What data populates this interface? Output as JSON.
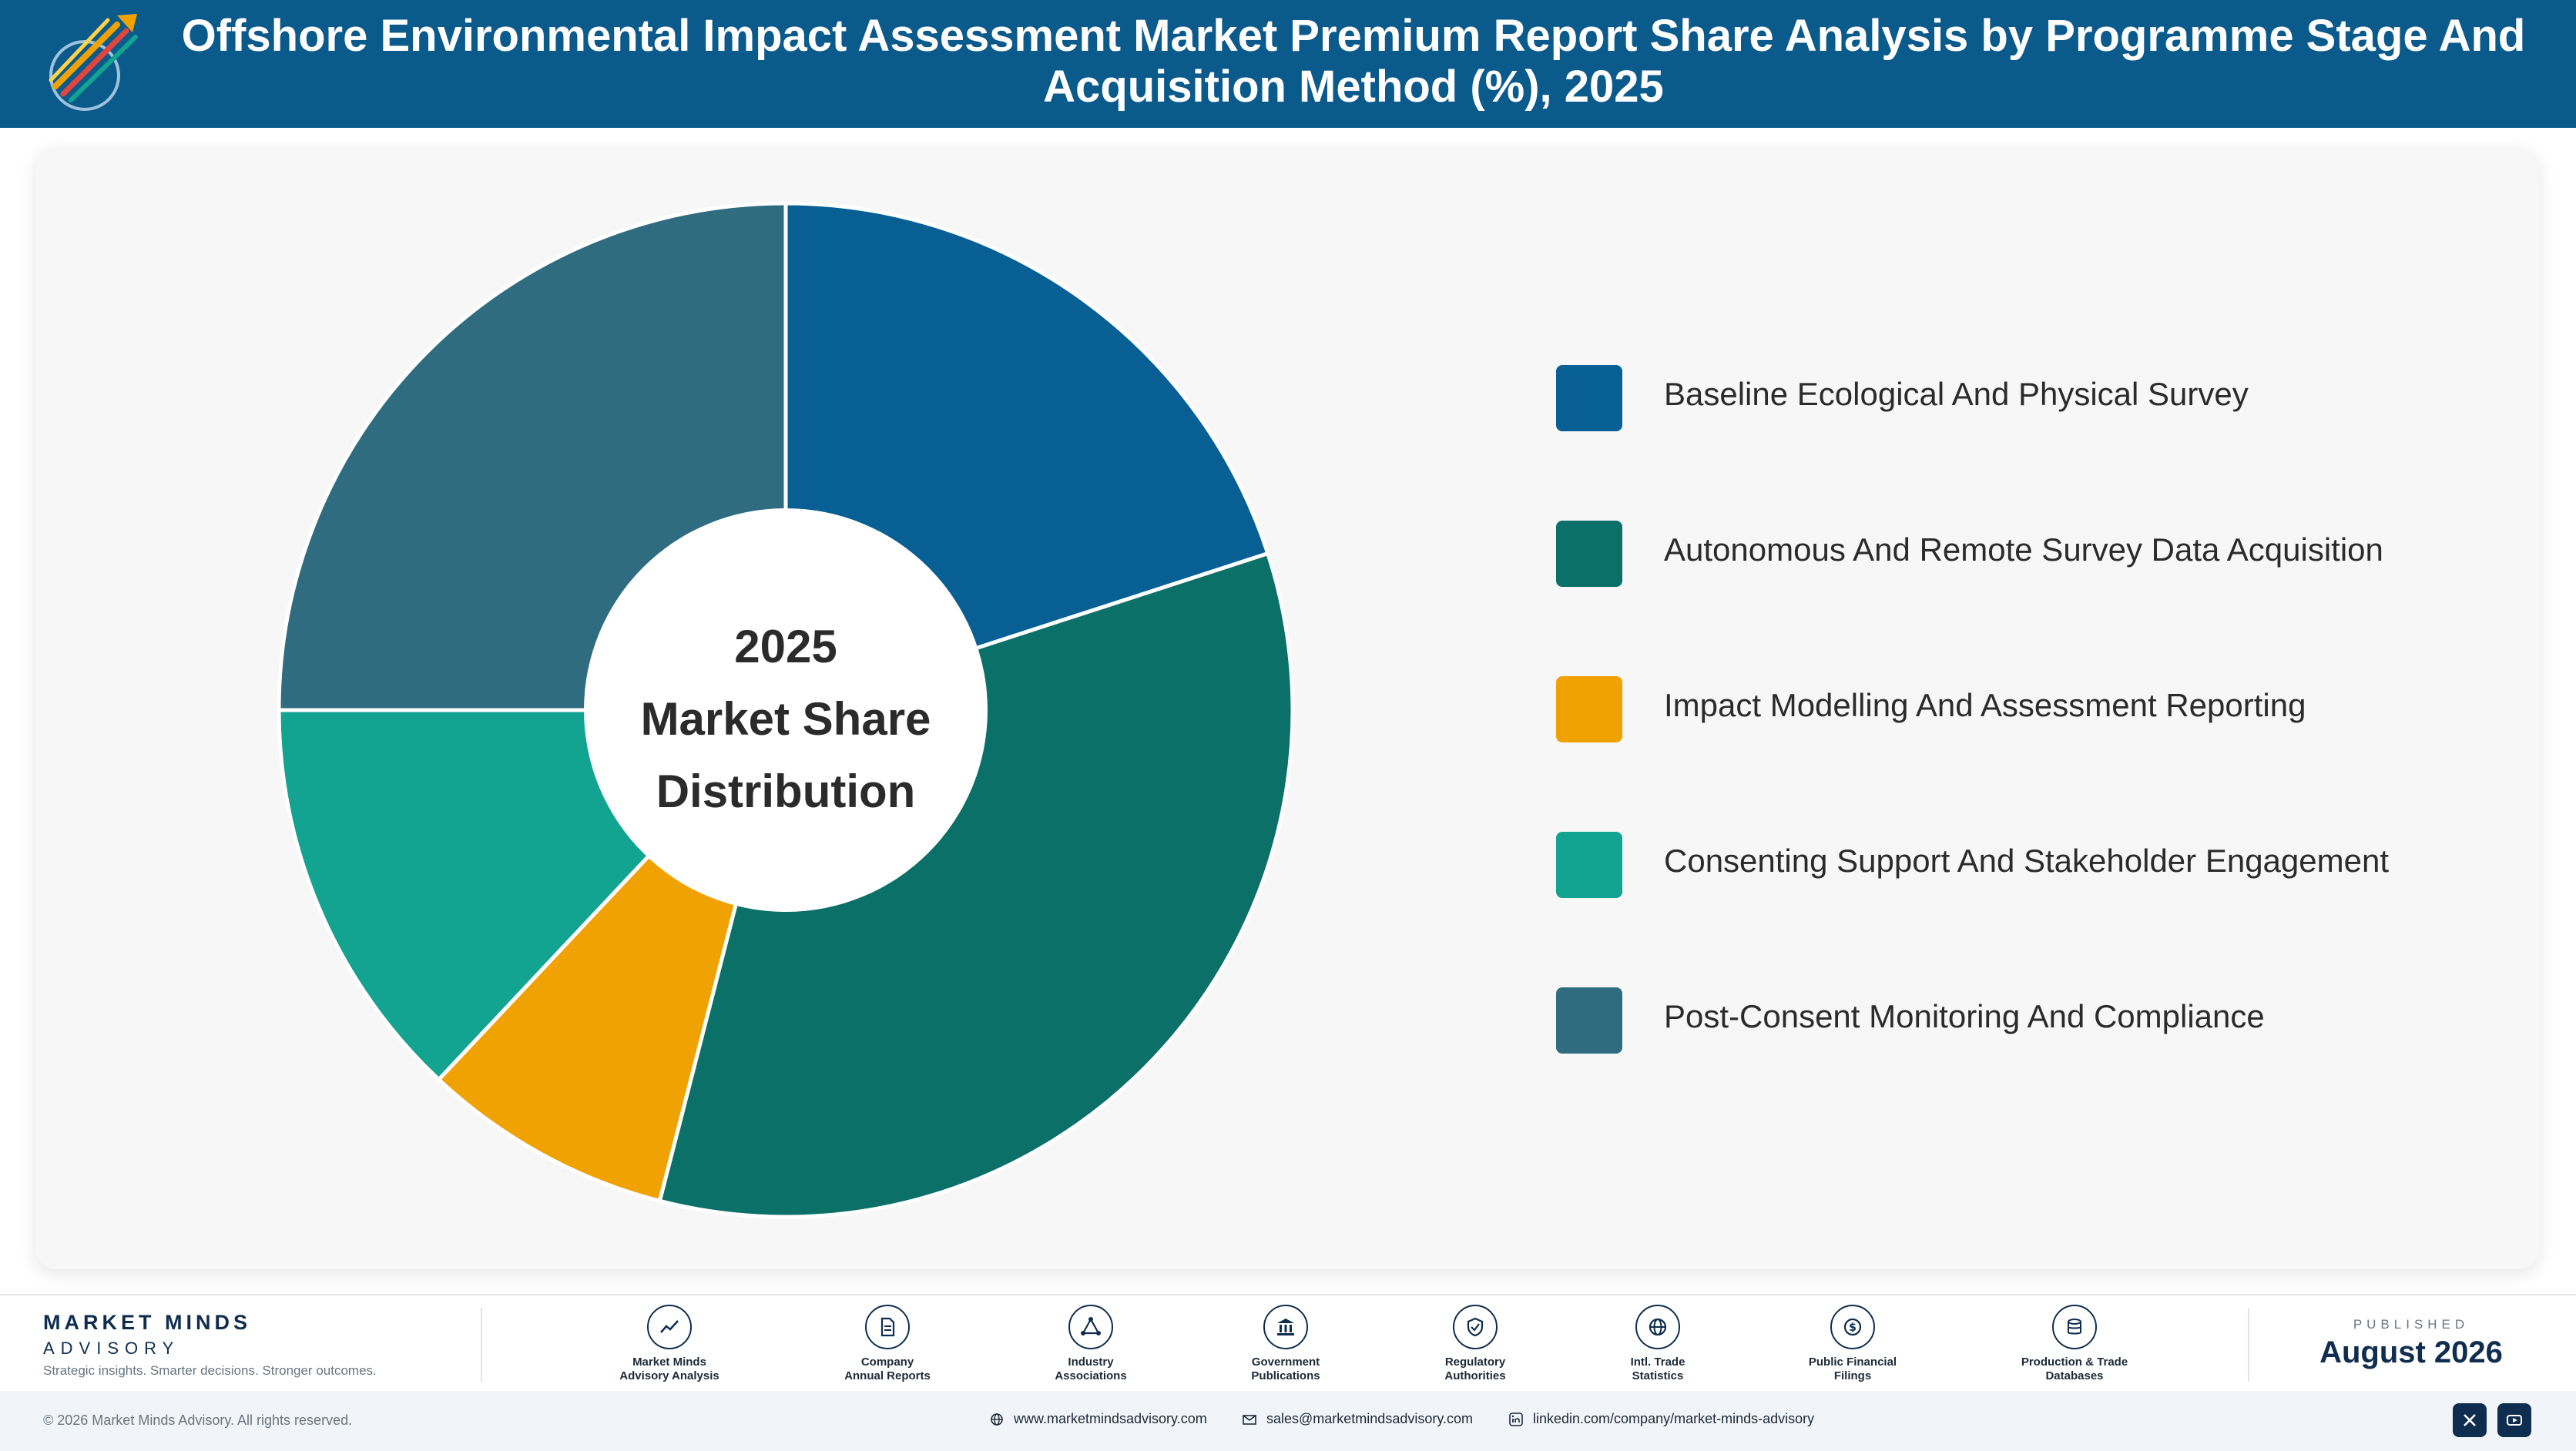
{
  "header": {
    "title": "Offshore Environmental Impact Assessment Market Premium Report Share Analysis by Programme Stage And Acquisition Method (%), 2025",
    "logo_icon": "market-minds-logo-icon"
  },
  "chart_data": {
    "type": "pie",
    "donut": true,
    "title": "Offshore Environmental Impact Assessment Market Premium Report Share Analysis by Programme Stage And Acquisition Method (%), 2025",
    "center_label": [
      "2025",
      "Market Share",
      "Distribution"
    ],
    "categories": [
      "Baseline Ecological And Physical Survey",
      "Autonomous And Remote Survey Data Acquisition",
      "Impact Modelling And Assessment Reporting",
      "Consenting Support And Stakeholder Engagement",
      "Post-Consent Monitoring And Compliance"
    ],
    "values": [
      20,
      34,
      8,
      13,
      25
    ],
    "colors": [
      "#075f94",
      "#0b7068",
      "#f0a202",
      "#12a391",
      "#2f6c80"
    ],
    "legend_position": "right",
    "start_angle": "12 o'clock, clockwise"
  },
  "footer": {
    "brand": {
      "name": "MARKET MINDS",
      "sub": "ADVISORY",
      "tagline": "Strategic insights. Smarter decisions. Stronger outcomes."
    },
    "sources": [
      {
        "line1": "Market Minds",
        "line2": "Advisory Analysis",
        "icon": "trend-chart-icon"
      },
      {
        "line1": "Company",
        "line2": "Annual Reports",
        "icon": "document-icon"
      },
      {
        "line1": "Industry",
        "line2": "Associations",
        "icon": "network-icon"
      },
      {
        "line1": "Government",
        "line2": "Publications",
        "icon": "government-building-icon"
      },
      {
        "line1": "Regulatory",
        "line2": "Authorities",
        "icon": "shield-check-icon"
      },
      {
        "line1": "Intl. Trade",
        "line2": "Statistics",
        "icon": "globe-icon"
      },
      {
        "line1": "Public Financial",
        "line2": "Filings",
        "icon": "coin-icon"
      },
      {
        "line1": "Production & Trade",
        "line2": "Databases",
        "icon": "database-icon"
      }
    ],
    "published_label": "PUBLISHED",
    "published_date": "August 2026",
    "copyright": "© 2026 Market Minds Advisory. All rights reserved.",
    "website": "www.marketmindsadvisory.com",
    "email": "sales@marketmindsadvisory.com",
    "linkedin": "linkedin.com/company/market-minds-advisory",
    "social": [
      "x-icon",
      "youtube-icon"
    ]
  }
}
